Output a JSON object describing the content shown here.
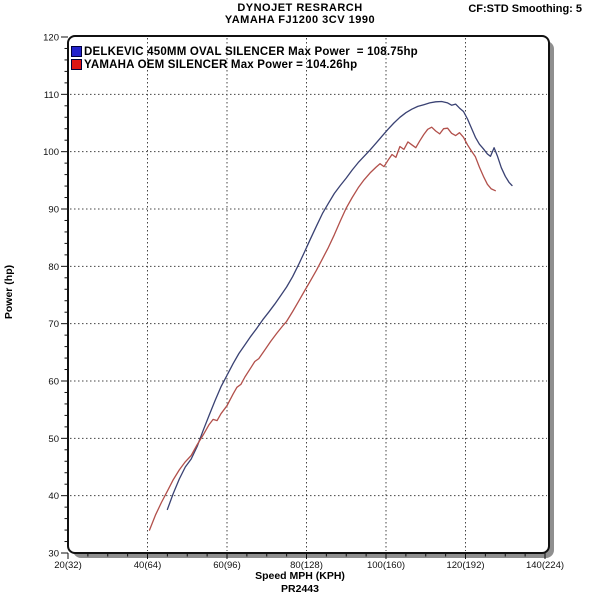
{
  "header": {
    "title_line1": "DYNOJET RESRARCH",
    "title_line2": "YAMAHA FJ1200 3CV 1990",
    "top_right": "CF:STD Smoothing: 5"
  },
  "legend": [
    {
      "label": "DELKEVIC 450MM OVAL SILENCER Max Power  = 108.75hp",
      "color": "#2222cc"
    },
    {
      "label": "YAMAHA OEM SILENCER Max Power = 104.26hp",
      "color": "#dd1515"
    }
  ],
  "chart_data": {
    "type": "line",
    "title": "DYNOJET RESRARCH",
    "subtitle": "YAMAHA FJ1200 3CV 1990",
    "xlabel": "Speed MPH (KPH)",
    "ylabel": "Power (hp)",
    "footnote": "PR2443",
    "smoothing_note": "CF:STD Smoothing: 5",
    "xlim": [
      20,
      141
    ],
    "ylim": [
      30,
      120
    ],
    "grid": "dotted",
    "legend_position": "top-left inside",
    "x_ticks": [
      {
        "mph": 20,
        "label": "20(32)"
      },
      {
        "mph": 40,
        "label": "40(64)"
      },
      {
        "mph": 60,
        "label": "60(96)"
      },
      {
        "mph": 80,
        "label": "80(128)"
      },
      {
        "mph": 100,
        "label": "100(160)"
      },
      {
        "mph": 120,
        "label": "120(192)"
      },
      {
        "mph": 140,
        "label": "140(224)"
      }
    ],
    "y_ticks": [
      30,
      40,
      50,
      60,
      70,
      80,
      90,
      100,
      110,
      120
    ],
    "grid_x_mph": [
      40,
      60,
      80,
      100,
      120
    ],
    "grid_y_hp": [
      40,
      50,
      60,
      70,
      80,
      90,
      100,
      110
    ],
    "x_minor_step_mph": 5,
    "y_minor_step_hp": 2,
    "series": [
      {
        "name": "DELKEVIC 450MM OVAL SILENCER",
        "max_power_hp": 108.75,
        "color": "#3a4273",
        "points": [
          [
            45,
            37.6
          ],
          [
            46.5,
            40.4
          ],
          [
            48,
            42.9
          ],
          [
            49.5,
            45
          ],
          [
            51,
            46.4
          ],
          [
            52.5,
            48.6
          ],
          [
            54,
            51.4
          ],
          [
            55.5,
            54
          ],
          [
            57,
            56.6
          ],
          [
            58.5,
            59
          ],
          [
            60,
            61
          ],
          [
            61.5,
            63
          ],
          [
            63,
            64.8
          ],
          [
            64.5,
            66.3
          ],
          [
            66,
            67.8
          ],
          [
            67.5,
            69.2
          ],
          [
            69,
            70.7
          ],
          [
            70.5,
            72
          ],
          [
            72,
            73.4
          ],
          [
            73.5,
            74.9
          ],
          [
            75,
            76.4
          ],
          [
            76.5,
            78.2
          ],
          [
            78,
            80.3
          ],
          [
            79.5,
            82.5
          ],
          [
            81,
            84.8
          ],
          [
            82.5,
            87
          ],
          [
            84,
            89.2
          ],
          [
            85.5,
            91
          ],
          [
            87,
            92.7
          ],
          [
            88.5,
            94.1
          ],
          [
            90,
            95.4
          ],
          [
            91.5,
            96.8
          ],
          [
            93,
            98.1
          ],
          [
            94.5,
            99.2
          ],
          [
            96,
            100.3
          ],
          [
            97.5,
            101.5
          ],
          [
            99,
            102.7
          ],
          [
            100.5,
            103.9
          ],
          [
            102,
            105
          ],
          [
            103.5,
            106
          ],
          [
            105,
            106.8
          ],
          [
            106.5,
            107.4
          ],
          [
            108,
            107.9
          ],
          [
            109.5,
            108.2
          ],
          [
            111,
            108.5
          ],
          [
            112.5,
            108.7
          ],
          [
            114,
            108.75
          ],
          [
            115.5,
            108.5
          ],
          [
            116.5,
            108.1
          ],
          [
            117.5,
            108.3
          ],
          [
            118.5,
            107.6
          ],
          [
            119.5,
            107
          ],
          [
            120.5,
            105.7
          ],
          [
            121.5,
            104.1
          ],
          [
            122.5,
            102.5
          ],
          [
            123.5,
            101.3
          ],
          [
            124.5,
            100.5
          ],
          [
            125.5,
            99.6
          ],
          [
            126.3,
            99.2
          ],
          [
            127.2,
            100.7
          ],
          [
            128,
            99.3
          ],
          [
            129,
            97.2
          ],
          [
            130,
            95.7
          ],
          [
            131,
            94.6
          ],
          [
            131.7,
            94.1
          ]
        ]
      },
      {
        "name": "YAMAHA OEM SILENCER",
        "max_power_hp": 104.26,
        "color": "#b2504b",
        "points": [
          [
            40.5,
            34
          ],
          [
            42,
            36.6
          ],
          [
            43.5,
            38.8
          ],
          [
            45,
            40.8
          ],
          [
            46.5,
            42.8
          ],
          [
            48,
            44.5
          ],
          [
            49.5,
            45.9
          ],
          [
            51,
            47
          ],
          [
            52.5,
            48.9
          ],
          [
            54,
            50.6
          ],
          [
            55.5,
            52.4
          ],
          [
            56.5,
            53.3
          ],
          [
            57.5,
            53.1
          ],
          [
            58.5,
            54.3
          ],
          [
            60,
            55.7
          ],
          [
            61.5,
            57.7
          ],
          [
            62.5,
            58.9
          ],
          [
            63.5,
            59.4
          ],
          [
            64.5,
            60.7
          ],
          [
            66,
            62.3
          ],
          [
            67,
            63.4
          ],
          [
            68,
            63.9
          ],
          [
            69.5,
            65.4
          ],
          [
            71,
            66.9
          ],
          [
            72.5,
            68.3
          ],
          [
            74,
            69.6
          ],
          [
            75,
            70.4
          ],
          [
            76.5,
            72.1
          ],
          [
            78,
            73.9
          ],
          [
            79.5,
            75.7
          ],
          [
            81,
            77.5
          ],
          [
            82.5,
            79.3
          ],
          [
            84,
            81.3
          ],
          [
            85.5,
            83.3
          ],
          [
            87,
            85.5
          ],
          [
            88.5,
            87.9
          ],
          [
            90,
            90.2
          ],
          [
            91.5,
            92
          ],
          [
            93,
            93.7
          ],
          [
            94.5,
            95.1
          ],
          [
            96,
            96.3
          ],
          [
            97.5,
            97.3
          ],
          [
            98.5,
            97.9
          ],
          [
            99.5,
            97.4
          ],
          [
            100.5,
            98.5
          ],
          [
            101.5,
            99.5
          ],
          [
            102.5,
            99
          ],
          [
            103.5,
            100.9
          ],
          [
            104.5,
            100.4
          ],
          [
            105.5,
            101.7
          ],
          [
            106.5,
            101.2
          ],
          [
            107.5,
            100.7
          ],
          [
            108.5,
            101.9
          ],
          [
            109.5,
            103
          ],
          [
            110.5,
            103.9
          ],
          [
            111.5,
            104.26
          ],
          [
            112.5,
            103.6
          ],
          [
            113.5,
            103.1
          ],
          [
            114.5,
            104
          ],
          [
            115.5,
            104.1
          ],
          [
            116.5,
            103.2
          ],
          [
            117.5,
            102.8
          ],
          [
            118.5,
            103.3
          ],
          [
            119.5,
            102.5
          ],
          [
            120.5,
            101.2
          ],
          [
            121.5,
            100.1
          ],
          [
            122.5,
            99.1
          ],
          [
            123.5,
            97.3
          ],
          [
            124.5,
            95.7
          ],
          [
            125.5,
            94.3
          ],
          [
            126.5,
            93.5
          ],
          [
            127.5,
            93.2
          ]
        ]
      }
    ]
  }
}
